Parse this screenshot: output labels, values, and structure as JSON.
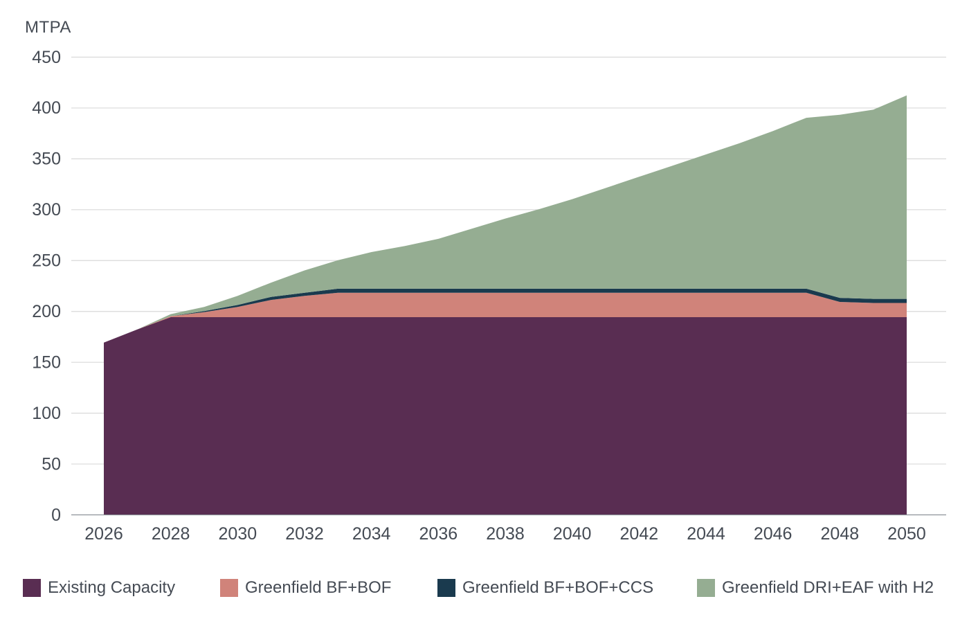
{
  "colors": {
    "background": "#ffffff",
    "text": "#454b54",
    "gridline": "#d9d9d9",
    "axis_line": "#8d9298"
  },
  "chart_data": {
    "type": "area",
    "stacked": true,
    "title": "",
    "ylabel": "MTPA",
    "xlabel": "",
    "grid": true,
    "legend_position": "bottom",
    "xlim": [
      2026,
      2050
    ],
    "ylim": [
      0,
      450
    ],
    "ytick_step": 50,
    "yticks": [
      0,
      50,
      100,
      150,
      200,
      250,
      300,
      350,
      400,
      450
    ],
    "xticks": [
      2026,
      2028,
      2030,
      2032,
      2034,
      2036,
      2038,
      2040,
      2042,
      2044,
      2046,
      2048,
      2050
    ],
    "x": [
      2026,
      2027,
      2028,
      2029,
      2030,
      2031,
      2032,
      2033,
      2034,
      2035,
      2036,
      2037,
      2038,
      2039,
      2040,
      2041,
      2042,
      2043,
      2044,
      2045,
      2046,
      2047,
      2048,
      2049,
      2050
    ],
    "series": [
      {
        "name": "Existing Capacity",
        "color": "#592d52",
        "values": [
          169,
          182,
          194,
          194,
          194,
          194,
          194,
          194,
          194,
          194,
          194,
          194,
          194,
          194,
          194,
          194,
          194,
          194,
          194,
          194,
          194,
          194,
          194,
          194,
          194
        ]
      },
      {
        "name": "Greenfield BF+BOF",
        "color": "#d0837a",
        "values": [
          0,
          0,
          1,
          5,
          10,
          17,
          21,
          24,
          24,
          24,
          24,
          24,
          24,
          24,
          24,
          24,
          24,
          24,
          24,
          24,
          24,
          24,
          15,
          14,
          14
        ]
      },
      {
        "name": "Greenfield BF+BOF+CCS",
        "color": "#1a3a4e",
        "values": [
          0,
          0,
          0,
          1,
          2,
          3,
          3,
          4,
          4,
          4,
          4,
          4,
          4,
          4,
          4,
          4,
          4,
          4,
          4,
          4,
          4,
          4,
          4,
          4,
          4
        ]
      },
      {
        "name": "Greenfield DRI+EAF with H2",
        "color": "#95ad92",
        "values": [
          0,
          0,
          2,
          4,
          9,
          14,
          22,
          28,
          36,
          42,
          49,
          59,
          69,
          78,
          88,
          99,
          110,
          121,
          132,
          143,
          155,
          168,
          180,
          186,
          200
        ]
      }
    ],
    "totals": [
      169,
      182,
      197,
      204,
      215,
      228,
      240,
      250,
      258,
      264,
      271,
      281,
      291,
      300,
      310,
      321,
      332,
      343,
      354,
      365,
      377,
      390,
      393,
      398,
      412
    ]
  },
  "legend": {
    "items": [
      {
        "label": "Existing Capacity",
        "color": "#592d52"
      },
      {
        "label": "Greenfield BF+BOF",
        "color": "#d0837a"
      },
      {
        "label": "Greenfield BF+BOF+CCS",
        "color": "#1a3a4e"
      },
      {
        "label": "Greenfield DRI+EAF with H2",
        "color": "#95ad92"
      }
    ]
  }
}
